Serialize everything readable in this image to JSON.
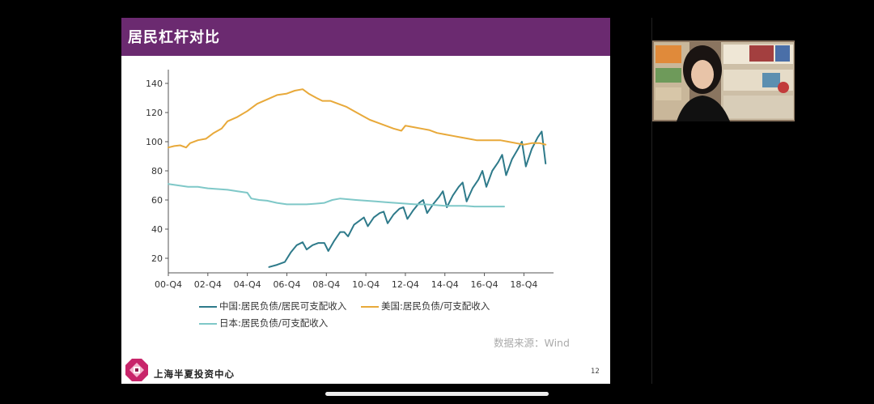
{
  "slide": {
    "title": "居民杠杆对比",
    "source": "数据来源：Wind",
    "org_name": "上海半夏投资中心",
    "page_number": "12"
  },
  "colors": {
    "title_bar": "#6b2a70",
    "china": "#2e7a8a",
    "usa": "#e8a93a",
    "japan": "#7fc8c8"
  },
  "chart_data": {
    "type": "line",
    "title": "",
    "xlabel": "",
    "ylabel": "",
    "ylim": [
      10,
      145
    ],
    "yticks": [
      20,
      40,
      60,
      80,
      100,
      120,
      140
    ],
    "xlim": [
      0,
      19.5
    ],
    "xticks": [
      {
        "label": "00-Q4",
        "x": 0
      },
      {
        "label": "02-Q4",
        "x": 2
      },
      {
        "label": "04-Q4",
        "x": 4
      },
      {
        "label": "06-Q4",
        "x": 6
      },
      {
        "label": "08-Q4",
        "x": 8
      },
      {
        "label": "10-Q4",
        "x": 10
      },
      {
        "label": "12-Q4",
        "x": 12
      },
      {
        "label": "14-Q4",
        "x": 14
      },
      {
        "label": "16-Q4",
        "x": 16
      },
      {
        "label": "18-Q4",
        "x": 18
      }
    ],
    "series": [
      {
        "name": "中国:居民负债/居民可支配收入",
        "color": "#2e7a8a",
        "points": [
          [
            5.1,
            14
          ],
          [
            5.5,
            15.5
          ],
          [
            5.9,
            17.5
          ],
          [
            6.2,
            24
          ],
          [
            6.5,
            29
          ],
          [
            6.8,
            31
          ],
          [
            7.0,
            26
          ],
          [
            7.3,
            29
          ],
          [
            7.6,
            30.5
          ],
          [
            7.9,
            30.5
          ],
          [
            8.1,
            25
          ],
          [
            8.4,
            32
          ],
          [
            8.7,
            38
          ],
          [
            8.9,
            38
          ],
          [
            9.1,
            35
          ],
          [
            9.4,
            43
          ],
          [
            9.7,
            46
          ],
          [
            9.9,
            48
          ],
          [
            10.1,
            42
          ],
          [
            10.4,
            48
          ],
          [
            10.7,
            51
          ],
          [
            10.9,
            52
          ],
          [
            11.1,
            44
          ],
          [
            11.4,
            50
          ],
          [
            11.7,
            54
          ],
          [
            11.9,
            55
          ],
          [
            12.1,
            47
          ],
          [
            12.4,
            53
          ],
          [
            12.7,
            58
          ],
          [
            12.9,
            60
          ],
          [
            13.1,
            51
          ],
          [
            13.4,
            57
          ],
          [
            13.7,
            62
          ],
          [
            13.9,
            66
          ],
          [
            14.1,
            55
          ],
          [
            14.4,
            63
          ],
          [
            14.7,
            69
          ],
          [
            14.9,
            72
          ],
          [
            15.1,
            59
          ],
          [
            15.4,
            68
          ],
          [
            15.7,
            74
          ],
          [
            15.9,
            80
          ],
          [
            16.1,
            69
          ],
          [
            16.4,
            80
          ],
          [
            16.7,
            86
          ],
          [
            16.9,
            91
          ],
          [
            17.1,
            77
          ],
          [
            17.4,
            88
          ],
          [
            17.7,
            95
          ],
          [
            17.9,
            100
          ],
          [
            18.1,
            83
          ],
          [
            18.4,
            95
          ],
          [
            18.7,
            103
          ],
          [
            18.9,
            107
          ],
          [
            19.1,
            85
          ]
        ]
      },
      {
        "name": "美国:居民负债/可支配收入",
        "color": "#e8a93a",
        "points": [
          [
            0.0,
            96
          ],
          [
            0.3,
            97
          ],
          [
            0.6,
            97.5
          ],
          [
            0.9,
            96
          ],
          [
            1.1,
            99
          ],
          [
            1.5,
            101
          ],
          [
            1.9,
            102
          ],
          [
            2.3,
            106
          ],
          [
            2.7,
            109
          ],
          [
            3.0,
            114
          ],
          [
            3.5,
            117
          ],
          [
            4.0,
            121
          ],
          [
            4.5,
            126
          ],
          [
            5.0,
            129
          ],
          [
            5.5,
            132
          ],
          [
            6.0,
            133
          ],
          [
            6.4,
            135
          ],
          [
            6.8,
            136
          ],
          [
            7.1,
            133
          ],
          [
            7.5,
            130
          ],
          [
            7.8,
            128
          ],
          [
            8.2,
            128
          ],
          [
            8.6,
            126
          ],
          [
            9.0,
            124
          ],
          [
            9.4,
            121
          ],
          [
            9.8,
            118
          ],
          [
            10.2,
            115
          ],
          [
            10.6,
            113
          ],
          [
            11.0,
            111
          ],
          [
            11.4,
            109
          ],
          [
            11.8,
            107.5
          ],
          [
            12.0,
            111
          ],
          [
            12.4,
            110
          ],
          [
            12.8,
            109
          ],
          [
            13.2,
            108
          ],
          [
            13.6,
            106
          ],
          [
            14.0,
            105
          ],
          [
            14.4,
            104
          ],
          [
            14.8,
            103
          ],
          [
            15.2,
            102
          ],
          [
            15.6,
            101
          ],
          [
            16.0,
            101
          ],
          [
            16.4,
            101
          ],
          [
            16.8,
            101
          ],
          [
            17.2,
            100
          ],
          [
            17.6,
            99
          ],
          [
            18.0,
            98
          ],
          [
            18.4,
            99
          ],
          [
            18.8,
            99
          ],
          [
            19.1,
            98
          ]
        ]
      },
      {
        "name": "日本:居民负债/可支配收入",
        "color": "#7fc8c8",
        "points": [
          [
            0.0,
            71
          ],
          [
            0.5,
            70
          ],
          [
            1.0,
            69
          ],
          [
            1.5,
            69
          ],
          [
            2.0,
            68
          ],
          [
            2.5,
            67.5
          ],
          [
            3.0,
            67
          ],
          [
            3.5,
            66
          ],
          [
            4.0,
            65
          ],
          [
            4.2,
            61
          ],
          [
            4.6,
            60
          ],
          [
            5.0,
            59.5
          ],
          [
            5.5,
            58
          ],
          [
            6.0,
            57
          ],
          [
            6.5,
            57
          ],
          [
            7.0,
            57
          ],
          [
            7.5,
            57.5
          ],
          [
            7.9,
            58
          ],
          [
            8.3,
            60
          ],
          [
            8.7,
            61
          ],
          [
            9.1,
            60.5
          ],
          [
            9.5,
            60
          ],
          [
            10.0,
            59.5
          ],
          [
            10.5,
            59
          ],
          [
            11.0,
            58.5
          ],
          [
            11.5,
            58
          ],
          [
            12.0,
            57.5
          ],
          [
            12.5,
            57
          ],
          [
            13.0,
            57
          ],
          [
            13.5,
            56.5
          ],
          [
            14.0,
            56
          ],
          [
            14.5,
            56
          ],
          [
            15.0,
            56
          ],
          [
            15.5,
            55.5
          ],
          [
            16.0,
            55.5
          ],
          [
            16.5,
            55.5
          ],
          [
            17.0,
            55.5
          ]
        ]
      }
    ],
    "legend": [
      "中国:居民负债/居民可支配收入",
      "美国:居民负债/可支配收入",
      "日本:居民负债/可支配收入"
    ]
  }
}
